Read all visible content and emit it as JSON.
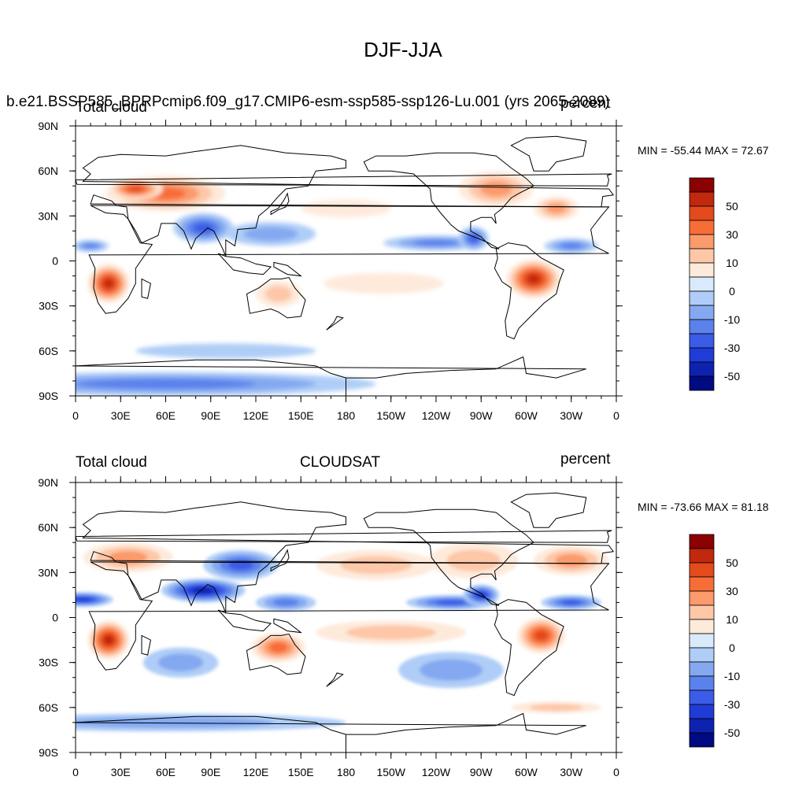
{
  "figure": {
    "title": "DJF-JJA"
  },
  "panels": [
    {
      "id": "top",
      "left_label": "Total cloud",
      "center_label": "b.e21.BSSP585_BPRPcmip6.f09_g17.CMIP6-esm-ssp585-ssp126-Lu.001 (yrs 2065-2089)",
      "right_label": "percent",
      "min_max": "MIN = -55.44 MAX =  72.67",
      "lat_ticks": [
        "90N",
        "60N",
        "30N",
        "0",
        "30S",
        "60S",
        "90S"
      ],
      "lon_ticks": [
        "0",
        "30E",
        "60E",
        "90E",
        "120E",
        "150E",
        "180",
        "150W",
        "120W",
        "90W",
        "60W",
        "30W",
        "0"
      ]
    },
    {
      "id": "bottom",
      "left_label": "Total cloud",
      "center_label": "CLOUDSAT",
      "right_label": "percent",
      "min_max": "MIN = -73.66 MAX =  81.18",
      "lat_ticks": [
        "90N",
        "60N",
        "30N",
        "0",
        "30S",
        "60S",
        "90S"
      ],
      "lon_ticks": [
        "0",
        "30E",
        "60E",
        "90E",
        "120E",
        "150E",
        "180",
        "150W",
        "120W",
        "90W",
        "60W",
        "30W",
        "0"
      ]
    }
  ],
  "colorbar": {
    "labels": [
      "50",
      "30",
      "10",
      "0",
      "-10",
      "-30",
      "-50"
    ],
    "colors": [
      "#8b0000",
      "#c1280d",
      "#e34a1c",
      "#f76d37",
      "#fb9a6a",
      "#fdc7a8",
      "#feeadb",
      "#d9eafc",
      "#afcdf7",
      "#84a9f1",
      "#5a82ec",
      "#3a5ce6",
      "#1f3cd7",
      "#0e22b0",
      "#000a82"
    ]
  },
  "palette": {
    "neutral": "#ffffff",
    "ocean_light_blue": "#d9eafc",
    "ocean_light_red": "#feeadb",
    "coast": "#000000"
  },
  "map_features": [
    {
      "name": "eurasia-positive",
      "panel": "top",
      "lon": 60,
      "lat": 45,
      "rlon": 40,
      "rlat": 12,
      "level": 4
    },
    {
      "name": "eurasia-core",
      "panel": "top",
      "lon": 40,
      "lat": 48,
      "rlon": 18,
      "rlat": 7,
      "level": 5
    },
    {
      "name": "africa-south",
      "panel": "top",
      "lon": 22,
      "lat": -15,
      "rlon": 14,
      "rlat": 13,
      "level": 6
    },
    {
      "name": "south-america",
      "panel": "top",
      "lon": -55,
      "lat": -12,
      "rlon": 18,
      "rlat": 13,
      "level": 6
    },
    {
      "name": "n-america-east",
      "panel": "top",
      "lon": -80,
      "lat": 48,
      "rlon": 25,
      "rlat": 12,
      "level": 3
    },
    {
      "name": "north-atlantic",
      "panel": "top",
      "lon": -40,
      "lat": 35,
      "rlon": 15,
      "rlat": 8,
      "level": 3
    },
    {
      "name": "australia",
      "panel": "top",
      "lon": 135,
      "lat": -22,
      "rlon": 15,
      "rlat": 9,
      "level": 2
    },
    {
      "name": "s-pacific-red",
      "panel": "top",
      "lon": -155,
      "lat": -15,
      "rlon": 40,
      "rlat": 7,
      "level": 1
    },
    {
      "name": "n-pacific-red",
      "panel": "top",
      "lon": 180,
      "lat": 35,
      "rlon": 30,
      "rlat": 6,
      "level": 1
    },
    {
      "name": "india-monsoon",
      "panel": "top",
      "lon": 85,
      "lat": 22,
      "rlon": 20,
      "rlat": 10,
      "level": -4
    },
    {
      "name": "w-pacific-blue",
      "panel": "top",
      "lon": 130,
      "lat": 18,
      "rlon": 30,
      "rlat": 8,
      "level": -2
    },
    {
      "name": "e-pacific-itcz",
      "panel": "top",
      "lon": -120,
      "lat": 12,
      "rlon": 35,
      "rlat": 5,
      "level": -3
    },
    {
      "name": "central-america",
      "panel": "top",
      "lon": -95,
      "lat": 15,
      "rlon": 10,
      "rlat": 8,
      "level": -4
    },
    {
      "name": "atlantic-itcz",
      "panel": "top",
      "lon": -30,
      "lat": 10,
      "rlon": 18,
      "rlat": 5,
      "level": -3
    },
    {
      "name": "africa-sahel",
      "panel": "top",
      "lon": 10,
      "lat": 10,
      "rlon": 12,
      "rlat": 4,
      "level": -3
    },
    {
      "name": "antarctic-blue",
      "panel": "top",
      "lon": 60,
      "lat": -82,
      "rlon": 140,
      "rlat": 8,
      "level": -3
    },
    {
      "name": "s-ocean-blue",
      "panel": "top",
      "lon": 100,
      "lat": -60,
      "rlon": 60,
      "rlat": 5,
      "level": -1
    },
    {
      "name": "eurasia-positive",
      "panel": "bottom",
      "lon": 35,
      "lat": 40,
      "rlon": 30,
      "rlat": 10,
      "level": 3
    },
    {
      "name": "africa-south",
      "panel": "bottom",
      "lon": 22,
      "lat": -15,
      "rlon": 14,
      "rlat": 13,
      "level": 6
    },
    {
      "name": "south-america",
      "panel": "bottom",
      "lon": -50,
      "lat": -12,
      "rlon": 16,
      "rlat": 12,
      "level": 5
    },
    {
      "name": "australia",
      "panel": "bottom",
      "lon": 135,
      "lat": -20,
      "rlon": 18,
      "rlat": 10,
      "level": 4
    },
    {
      "name": "n-pacific-red",
      "panel": "bottom",
      "lon": -160,
      "lat": 35,
      "rlon": 40,
      "rlat": 10,
      "level": 2
    },
    {
      "name": "n-america",
      "panel": "bottom",
      "lon": -95,
      "lat": 38,
      "rlon": 30,
      "rlat": 12,
      "level": 2
    },
    {
      "name": "north-atlantic",
      "panel": "bottom",
      "lon": -30,
      "lat": 38,
      "rlon": 25,
      "rlat": 10,
      "level": 3
    },
    {
      "name": "s-pacific-red",
      "panel": "bottom",
      "lon": -150,
      "lat": -10,
      "rlon": 50,
      "rlat": 8,
      "level": 2
    },
    {
      "name": "india-monsoon",
      "panel": "bottom",
      "lon": 85,
      "lat": 18,
      "rlon": 28,
      "rlat": 8,
      "level": -6
    },
    {
      "name": "asia-blue",
      "panel": "bottom",
      "lon": 110,
      "lat": 35,
      "rlon": 25,
      "rlat": 10,
      "level": -4
    },
    {
      "name": "w-pacific-blue",
      "panel": "bottom",
      "lon": 140,
      "lat": 10,
      "rlon": 20,
      "rlat": 6,
      "level": -3
    },
    {
      "name": "e-pacific-itcz",
      "panel": "bottom",
      "lon": -110,
      "lat": 10,
      "rlon": 30,
      "rlat": 5,
      "level": -4
    },
    {
      "name": "central-america",
      "panel": "bottom",
      "lon": -90,
      "lat": 15,
      "rlon": 12,
      "rlat": 7,
      "level": -5
    },
    {
      "name": "atlantic-itcz",
      "panel": "bottom",
      "lon": -30,
      "lat": 10,
      "rlon": 20,
      "rlat": 5,
      "level": -4
    },
    {
      "name": "africa-sahel",
      "panel": "bottom",
      "lon": 5,
      "lat": 12,
      "rlon": 20,
      "rlat": 5,
      "level": -5
    },
    {
      "name": "s-indian-blue",
      "panel": "bottom",
      "lon": 70,
      "lat": -30,
      "rlon": 25,
      "rlat": 10,
      "level": -2
    },
    {
      "name": "s-pacific-blue",
      "panel": "bottom",
      "lon": -110,
      "lat": -35,
      "rlon": 35,
      "rlat": 12,
      "level": -2
    },
    {
      "name": "s-ocean-blue",
      "panel": "bottom",
      "lon": 60,
      "lat": -70,
      "rlon": 120,
      "rlat": 6,
      "level": -2
    },
    {
      "name": "s-ocean-red",
      "panel": "bottom",
      "lon": -40,
      "lat": -60,
      "rlon": 30,
      "rlat": 4,
      "level": 2
    }
  ]
}
